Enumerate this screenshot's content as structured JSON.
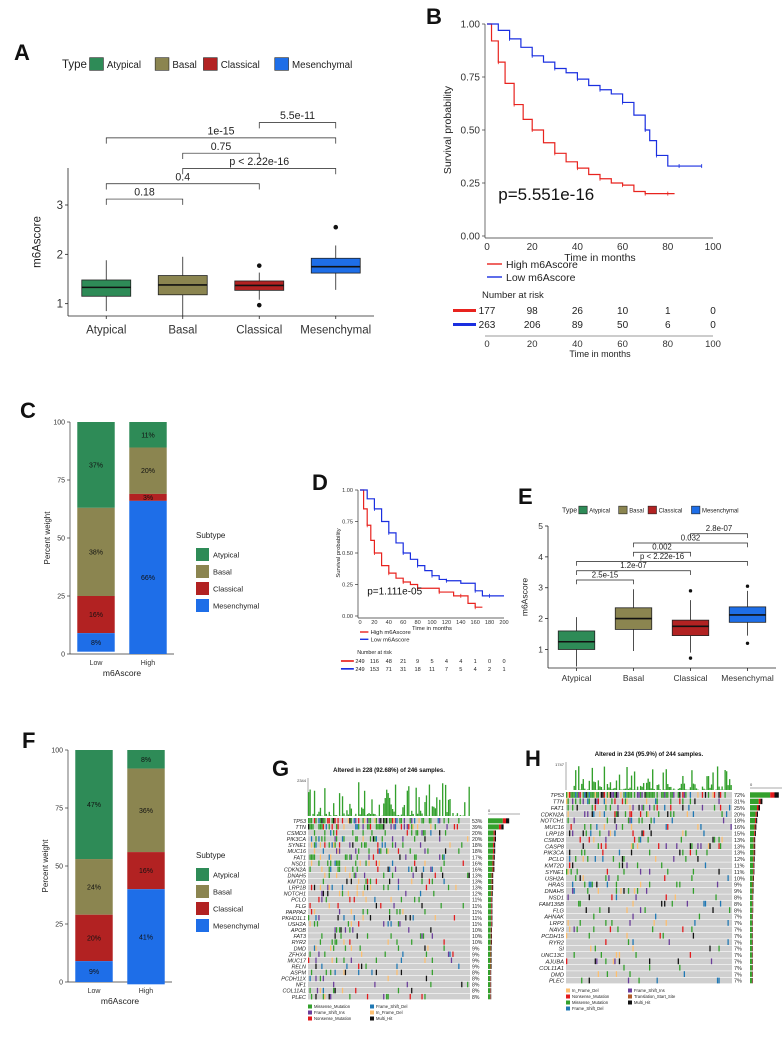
{
  "panels": {
    "A": "A",
    "B": "B",
    "C": "C",
    "D": "D",
    "E": "E",
    "F": "F",
    "G": "G",
    "H": "H"
  },
  "colors": {
    "atypical": "#2e8b57",
    "basal": "#8b8550",
    "classical": "#b22222",
    "mesenchymal": "#1e6ee8",
    "high": "#e8231e",
    "low": "#1a2fe0",
    "missense": "#33a02c",
    "frameshift_del": "#1f78b4",
    "frameshift_ins": "#6a3d9a",
    "nonsense": "#e31a1c",
    "inframe_del": "#fdbf6f",
    "inframe_ins": "#ff7f00",
    "multi_hit": "#111111",
    "translation_start": "#b15928"
  },
  "chart_data": [
    {
      "id": "A",
      "type": "box",
      "legend_title": "Type",
      "categories": [
        "Atypical",
        "Basal",
        "Classical",
        "Mesenchymal"
      ],
      "ylabel": "m6Ascore",
      "ylim": [
        0.75,
        3.75
      ],
      "yticks": [
        1,
        2,
        3
      ],
      "boxes": [
        {
          "min": 0.85,
          "q1": 1.15,
          "median": 1.33,
          "q3": 1.48,
          "max": 1.88,
          "outliers": []
        },
        {
          "min": 0.75,
          "q1": 1.18,
          "median": 1.38,
          "q3": 1.57,
          "max": 1.95,
          "outliers": []
        },
        {
          "min": 1.08,
          "q1": 1.27,
          "median": 1.37,
          "q3": 1.46,
          "max": 1.63,
          "outliers": [
            1.77,
            0.97
          ]
        },
        {
          "min": 1.28,
          "q1": 1.62,
          "median": 1.75,
          "q3": 1.92,
          "max": 2.18,
          "outliers": [
            2.55
          ]
        }
      ],
      "comparisons": [
        {
          "from": 0,
          "to": 1,
          "label": "0.18",
          "level": 3.12
        },
        {
          "from": 0,
          "to": 2,
          "label": "0.4",
          "level": 3.43
        },
        {
          "from": 1,
          "to": 3,
          "label": "p < 2.22e-16",
          "level": 3.74
        },
        {
          "from": 1,
          "to": 2,
          "label": "0.75",
          "level": 4.05
        },
        {
          "from": 0,
          "to": 3,
          "label": "1e-15",
          "level": 4.36
        },
        {
          "from": 2,
          "to": 3,
          "label": "5.5e-11",
          "level": 4.67
        }
      ]
    },
    {
      "id": "B",
      "type": "line",
      "ylabel": "Survival probability",
      "xlabel": "Time in months",
      "xticks": [
        0,
        20,
        40,
        60,
        80,
        100
      ],
      "yticks": [
        "0.00",
        "0.25",
        "0.50",
        "0.75",
        "1.00"
      ],
      "pvalue": "p=5.551e-16",
      "series": [
        {
          "name": "High m6Ascore",
          "x": [
            0,
            2,
            5,
            8,
            12,
            16,
            20,
            25,
            30,
            35,
            40,
            45,
            50,
            55,
            60,
            65,
            70,
            75,
            80,
            83
          ],
          "y": [
            1.0,
            0.92,
            0.82,
            0.72,
            0.62,
            0.55,
            0.5,
            0.44,
            0.39,
            0.35,
            0.32,
            0.29,
            0.27,
            0.25,
            0.24,
            0.21,
            0.2,
            0.2,
            0.2,
            0.2
          ]
        },
        {
          "name": "Low m6Ascore",
          "x": [
            0,
            5,
            10,
            15,
            20,
            25,
            30,
            35,
            40,
            45,
            50,
            55,
            60,
            65,
            70,
            72,
            75,
            80,
            85,
            90,
            95
          ],
          "y": [
            1.0,
            0.97,
            0.93,
            0.89,
            0.85,
            0.82,
            0.79,
            0.77,
            0.74,
            0.71,
            0.69,
            0.67,
            0.63,
            0.57,
            0.5,
            0.45,
            0.38,
            0.33,
            0.33,
            0.33,
            0.33
          ]
        }
      ],
      "risk_table": {
        "title": "Number at risk",
        "rows": [
          [
            177,
            98,
            26,
            10,
            1,
            0
          ],
          [
            263,
            206,
            89,
            50,
            6,
            0
          ]
        ]
      }
    },
    {
      "id": "C",
      "type": "bar",
      "stacked": true,
      "categories": [
        "Low",
        "High"
      ],
      "xlabel": "m6Ascore",
      "ylabel": "Percent weight",
      "yticks": [
        0,
        25,
        50,
        75,
        100
      ],
      "legend_title": "Subtype",
      "series": [
        {
          "name": "Atypical",
          "values": [
            37,
            11
          ]
        },
        {
          "name": "Basal",
          "values": [
            38,
            20
          ]
        },
        {
          "name": "Classical",
          "values": [
            16,
            3
          ]
        },
        {
          "name": "Mesenchymal",
          "values": [
            8,
            66
          ]
        }
      ],
      "labels": [
        [
          "37%",
          "38%",
          "16%",
          "8%"
        ],
        [
          "11%",
          "20%",
          "3%",
          "66%"
        ]
      ]
    },
    {
      "id": "D",
      "type": "line",
      "ylabel": "Survival probability",
      "xlabel": "Time in months",
      "xticks": [
        0,
        20,
        40,
        60,
        80,
        100,
        120,
        140,
        160,
        180,
        200
      ],
      "yticks": [
        "0.00",
        "0.25",
        "0.50",
        "0.75",
        "1.00"
      ],
      "pvalue": "p=1.111e-05",
      "series": [
        {
          "name": "High m6Ascore",
          "x": [
            0,
            5,
            10,
            15,
            20,
            30,
            40,
            50,
            60,
            70,
            80,
            100,
            110,
            130,
            140,
            150,
            160,
            170
          ],
          "y": [
            1.0,
            0.85,
            0.72,
            0.6,
            0.5,
            0.4,
            0.34,
            0.3,
            0.27,
            0.25,
            0.22,
            0.22,
            0.19,
            0.16,
            0.16,
            0.1,
            0.07,
            0.07
          ]
        },
        {
          "name": "Low m6Ascore",
          "x": [
            0,
            10,
            20,
            30,
            40,
            50,
            60,
            70,
            80,
            90,
            100,
            110,
            120,
            140,
            160,
            170,
            180,
            200
          ],
          "y": [
            1.0,
            0.93,
            0.85,
            0.75,
            0.66,
            0.58,
            0.5,
            0.45,
            0.4,
            0.36,
            0.32,
            0.29,
            0.28,
            0.26,
            0.2,
            0.16,
            0.16,
            0.16
          ]
        }
      ],
      "risk_table": {
        "title": "Number at risk",
        "rows": [
          [
            249,
            116,
            48,
            21,
            9,
            5,
            4,
            4,
            1,
            0,
            0
          ],
          [
            249,
            153,
            71,
            31,
            18,
            11,
            7,
            5,
            4,
            2,
            1
          ]
        ]
      }
    },
    {
      "id": "E",
      "type": "box",
      "legend_title": "Type",
      "categories": [
        "Atypical",
        "Basal",
        "Classical",
        "Mesenchymal"
      ],
      "ylabel": "m6Ascore",
      "ylim": [
        0.4,
        5
      ],
      "yticks": [
        1,
        2,
        3,
        4,
        5
      ],
      "boxes": [
        {
          "min": 0.45,
          "q1": 1.0,
          "median": 1.25,
          "q3": 1.6,
          "max": 2.05,
          "outliers": []
        },
        {
          "min": 0.95,
          "q1": 1.65,
          "median": 2.0,
          "q3": 2.35,
          "max": 2.95,
          "outliers": []
        },
        {
          "min": 0.9,
          "q1": 1.45,
          "median": 1.75,
          "q3": 1.95,
          "max": 2.6,
          "outliers": [
            2.9,
            0.72
          ]
        },
        {
          "min": 1.45,
          "q1": 1.88,
          "median": 2.12,
          "q3": 2.38,
          "max": 2.9,
          "outliers": [
            3.05,
            1.2
          ]
        }
      ],
      "comparisons": [
        {
          "from": 0,
          "to": 1,
          "label": "2.5e-15",
          "level": 3.25
        },
        {
          "from": 0,
          "to": 2,
          "label": "1.2e-07",
          "level": 3.55
        },
        {
          "from": 0,
          "to": 3,
          "label": "p < 2.22e-16",
          "level": 3.85
        },
        {
          "from": 1,
          "to": 2,
          "label": "0.002",
          "level": 4.15
        },
        {
          "from": 1,
          "to": 3,
          "label": "0.032",
          "level": 4.45
        },
        {
          "from": 2,
          "to": 3,
          "label": "2.8e-07",
          "level": 4.75
        }
      ]
    },
    {
      "id": "F",
      "type": "bar",
      "stacked": true,
      "categories": [
        "Low",
        "High"
      ],
      "xlabel": "m6Ascore",
      "ylabel": "Percent weight",
      "yticks": [
        0,
        25,
        50,
        75,
        100
      ],
      "legend_title": "Subtype",
      "series": [
        {
          "name": "Atypical",
          "values": [
            47,
            8
          ]
        },
        {
          "name": "Basal",
          "values": [
            24,
            36
          ]
        },
        {
          "name": "Classical",
          "values": [
            20,
            16
          ]
        },
        {
          "name": "Mesenchymal",
          "values": [
            9,
            41
          ]
        }
      ],
      "labels": [
        [
          "47%",
          "24%",
          "20%",
          "9%"
        ],
        [
          "8%",
          "36%",
          "16%",
          "41%"
        ]
      ]
    },
    {
      "id": "G",
      "type": "heatmap",
      "title": "Altered in 228 (92.68%) of 246 samples.",
      "top_axis_max": "2344",
      "side_axis_ticks": [
        "0",
        "130"
      ],
      "genes": [
        "TP53",
        "TTN",
        "CSMD3",
        "PIK3CA",
        "SYNE1",
        "MUC16",
        "FAT1",
        "NSD1",
        "CDKN2A",
        "DNAH5",
        "KMT2D",
        "LRP1B",
        "NOTCH1",
        "PCLO",
        "FLG",
        "PAPPA2",
        "PKHD1L1",
        "USH2A",
        "APOB",
        "FAT3",
        "RYR2",
        "DMD",
        "ZFHX4",
        "MUC17",
        "RELN",
        "ASPM",
        "PCDH11X",
        "NF1",
        "COL11A1",
        "PLEC"
      ],
      "percents": [
        "53%",
        "39%",
        "20%",
        "20%",
        "18%",
        "18%",
        "17%",
        "16%",
        "16%",
        "13%",
        "13%",
        "13%",
        "12%",
        "11%",
        "11%",
        "11%",
        "11%",
        "11%",
        "10%",
        "10%",
        "10%",
        "9%",
        "9%",
        "9%",
        "9%",
        "8%",
        "8%",
        "8%",
        "8%",
        "8%"
      ],
      "legend": [
        "Missense_Mutation",
        "Frame_Shift_Del",
        "Frame_Shift_Ins",
        "In_Frame_Del",
        "Nonsense_Mutation",
        "Multi_Hit"
      ]
    },
    {
      "id": "H",
      "type": "heatmap",
      "title": "Altered in 234 (95.9%) of 244 samples.",
      "top_axis_max": "1747",
      "side_axis_ticks": [
        "0",
        "4"
      ],
      "genes": [
        "TP53",
        "TTN",
        "FAT1",
        "CDKN2A",
        "NOTCH1",
        "MUC16",
        "LRP1B",
        "CSMD3",
        "CASP8",
        "PIK3CA",
        "PCLO",
        "KMT2D",
        "SYNE1",
        "USH2A",
        "HRAS",
        "DNAH5",
        "NSD1",
        "FAM135B",
        "FLG",
        "AHNAK",
        "LRP2",
        "NAV3",
        "PCDH15",
        "RYR2",
        "SI",
        "UNC13C",
        "AJUBA",
        "COL11A1",
        "DMD",
        "PLEC"
      ],
      "percents": [
        "72%",
        "31%",
        "25%",
        "20%",
        "18%",
        "16%",
        "15%",
        "13%",
        "13%",
        "13%",
        "12%",
        "11%",
        "11%",
        "10%",
        "9%",
        "9%",
        "8%",
        "8%",
        "8%",
        "7%",
        "7%",
        "7%",
        "7%",
        "7%",
        "7%",
        "7%",
        "7%",
        "7%",
        "7%",
        "7%"
      ],
      "legend": [
        "In_Frame_Del",
        "Frame_Shift_Ins",
        "Nonsense_Mutation",
        "Translation_Start_Site",
        "Missense_Mutation",
        "Multi_Hit",
        "Frame_Shift_Del"
      ]
    }
  ]
}
